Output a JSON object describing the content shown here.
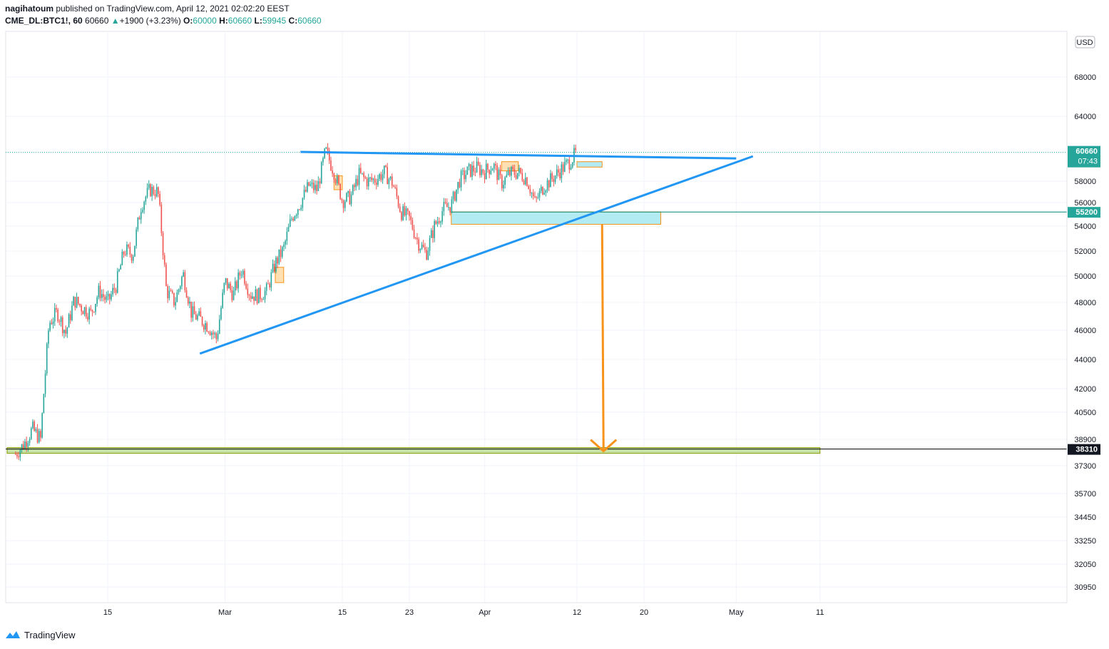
{
  "header": {
    "author": "nagihatoum",
    "published_text": " published on TradingView.com, April 12, 2021 02:02:20 EEST",
    "symbol": "CME_DL:BTC1!, 60",
    "last": "60660",
    "change": "+1900 (+3.23%)",
    "o_label": "O:",
    "o_val": "60000",
    "h_label": "H:",
    "h_val": "60660",
    "l_label": "L:",
    "l_val": "59945",
    "c_label": "C:",
    "c_val": "60660"
  },
  "footer": {
    "brand": "TradingView"
  },
  "colors": {
    "up": "#26a69a",
    "down": "#ef5350",
    "trend": "#2196f3",
    "arrow": "#f7931a",
    "zone_blue": "#b2ebf2",
    "zone_orange": "#ffe0b2",
    "zone_green": "#c5e1a5",
    "price_tag": "#26a69a"
  },
  "chart_data": {
    "type": "candlestick",
    "symbol": "CME_DL:BTC1!",
    "interval": "60",
    "currency": "USD",
    "x_tick_labels": [
      "15",
      "Mar",
      "15",
      "23",
      "Apr",
      "12",
      "20",
      "May",
      "11"
    ],
    "y_tick_labels": [
      "68000",
      "64000",
      "58000",
      "56000",
      "54000",
      "52000",
      "50000",
      "48000",
      "46000",
      "44000",
      "42000",
      "40500",
      "38900",
      "37300",
      "35700",
      "34450",
      "33250",
      "32050",
      "30950"
    ],
    "y_scale": "log",
    "y_range": [
      30000,
      71500
    ],
    "price_tags": [
      {
        "value": "60660",
        "sub": "07:43",
        "kind": "last"
      },
      {
        "value": "55200",
        "kind": "level"
      },
      {
        "value": "38310",
        "kind": "target"
      }
    ],
    "price_path": [
      [
        "2021-02-04",
        38000
      ],
      [
        "2021-02-05",
        38600
      ],
      [
        "2021-02-06",
        39500
      ],
      [
        "2021-02-07",
        38900
      ],
      [
        "2021-02-08",
        46500
      ],
      [
        "2021-02-09",
        47300
      ],
      [
        "2021-02-10",
        45800
      ],
      [
        "2021-02-11",
        48200
      ],
      [
        "2021-02-12",
        47600
      ],
      [
        "2021-02-13",
        47200
      ],
      [
        "2021-02-14",
        48900
      ],
      [
        "2021-02-15",
        48000
      ],
      [
        "2021-02-16",
        49300
      ],
      [
        "2021-02-17",
        52100
      ],
      [
        "2021-02-18",
        51700
      ],
      [
        "2021-02-19",
        55800
      ],
      [
        "2021-02-20",
        57200
      ],
      [
        "2021-02-21",
        57000
      ],
      [
        "2021-02-22",
        48900
      ],
      [
        "2021-02-23",
        48000
      ],
      [
        "2021-02-24",
        50200
      ],
      [
        "2021-02-25",
        47200
      ],
      [
        "2021-02-26",
        46800
      ],
      [
        "2021-02-27",
        46300
      ],
      [
        "2021-02-28",
        45400
      ],
      [
        "2021-03-01",
        49600
      ],
      [
        "2021-03-02",
        48600
      ],
      [
        "2021-03-03",
        50600
      ],
      [
        "2021-03-04",
        48600
      ],
      [
        "2021-03-05",
        48500
      ],
      [
        "2021-03-06",
        48900
      ],
      [
        "2021-03-07",
        51000
      ],
      [
        "2021-03-08",
        52200
      ],
      [
        "2021-03-09",
        54800
      ],
      [
        "2021-03-10",
        56000
      ],
      [
        "2021-03-11",
        57600
      ],
      [
        "2021-03-12",
        57200
      ],
      [
        "2021-03-13",
        60800
      ],
      [
        "2021-03-14",
        58900
      ],
      [
        "2021-03-15",
        56200
      ],
      [
        "2021-03-16",
        56500
      ],
      [
        "2021-03-17",
        58600
      ],
      [
        "2021-03-18",
        58000
      ],
      [
        "2021-03-19",
        58200
      ],
      [
        "2021-03-20",
        58800
      ],
      [
        "2021-03-21",
        57800
      ],
      [
        "2021-03-22",
        55200
      ],
      [
        "2021-03-23",
        54600
      ],
      [
        "2021-03-24",
        52800
      ],
      [
        "2021-03-25",
        51800
      ],
      [
        "2021-03-26",
        54000
      ],
      [
        "2021-03-27",
        55400
      ],
      [
        "2021-03-28",
        55800
      ],
      [
        "2021-03-29",
        58100
      ],
      [
        "2021-03-30",
        58900
      ],
      [
        "2021-03-31",
        59200
      ],
      [
        "2021-04-01",
        58900
      ],
      [
        "2021-04-02",
        59500
      ],
      [
        "2021-04-03",
        57800
      ],
      [
        "2021-04-04",
        58700
      ],
      [
        "2021-04-05",
        58800
      ],
      [
        "2021-04-06",
        58200
      ],
      [
        "2021-04-07",
        56000
      ],
      [
        "2021-04-08",
        57500
      ],
      [
        "2021-04-09",
        58200
      ],
      [
        "2021-04-10",
        59000
      ],
      [
        "2021-04-11",
        59700
      ],
      [
        "2021-04-12",
        60660
      ]
    ],
    "drawings": {
      "resistance_line": [
        [
          "2021-03-10",
          60700
        ],
        [
          "2021-05-01",
          60100
        ]
      ],
      "support_line": [
        [
          "2021-02-26",
          44400
        ],
        [
          "2021-05-03",
          60300
        ]
      ],
      "zones": [
        {
          "color": "blue",
          "from": "2021-03-28",
          "to": "2021-04-22",
          "top": 55200,
          "bottom": 54150
        },
        {
          "color": "blue",
          "from": "2021-04-12",
          "to": "2021-04-15",
          "top": 59800,
          "bottom": 59300
        },
        {
          "color": "orange",
          "from": "2021-04-03",
          "to": "2021-04-05",
          "top": 59800,
          "bottom": 58950
        },
        {
          "color": "orange",
          "from": "2021-03-14",
          "to": "2021-03-15",
          "top": 58500,
          "bottom": 57200
        },
        {
          "color": "orange",
          "from": "2021-03-07",
          "to": "2021-03-08",
          "top": 50700,
          "bottom": 49500
        },
        {
          "color": "green",
          "from": "2021-02-03",
          "to": "2021-05-11",
          "top": 38400,
          "bottom": 38050
        }
      ],
      "target_arrow": {
        "from": [
          "2021-04-15",
          54150
        ],
        "to": [
          "2021-04-15",
          38310
        ]
      },
      "horizontal_levels": [
        55200,
        38310
      ]
    }
  }
}
